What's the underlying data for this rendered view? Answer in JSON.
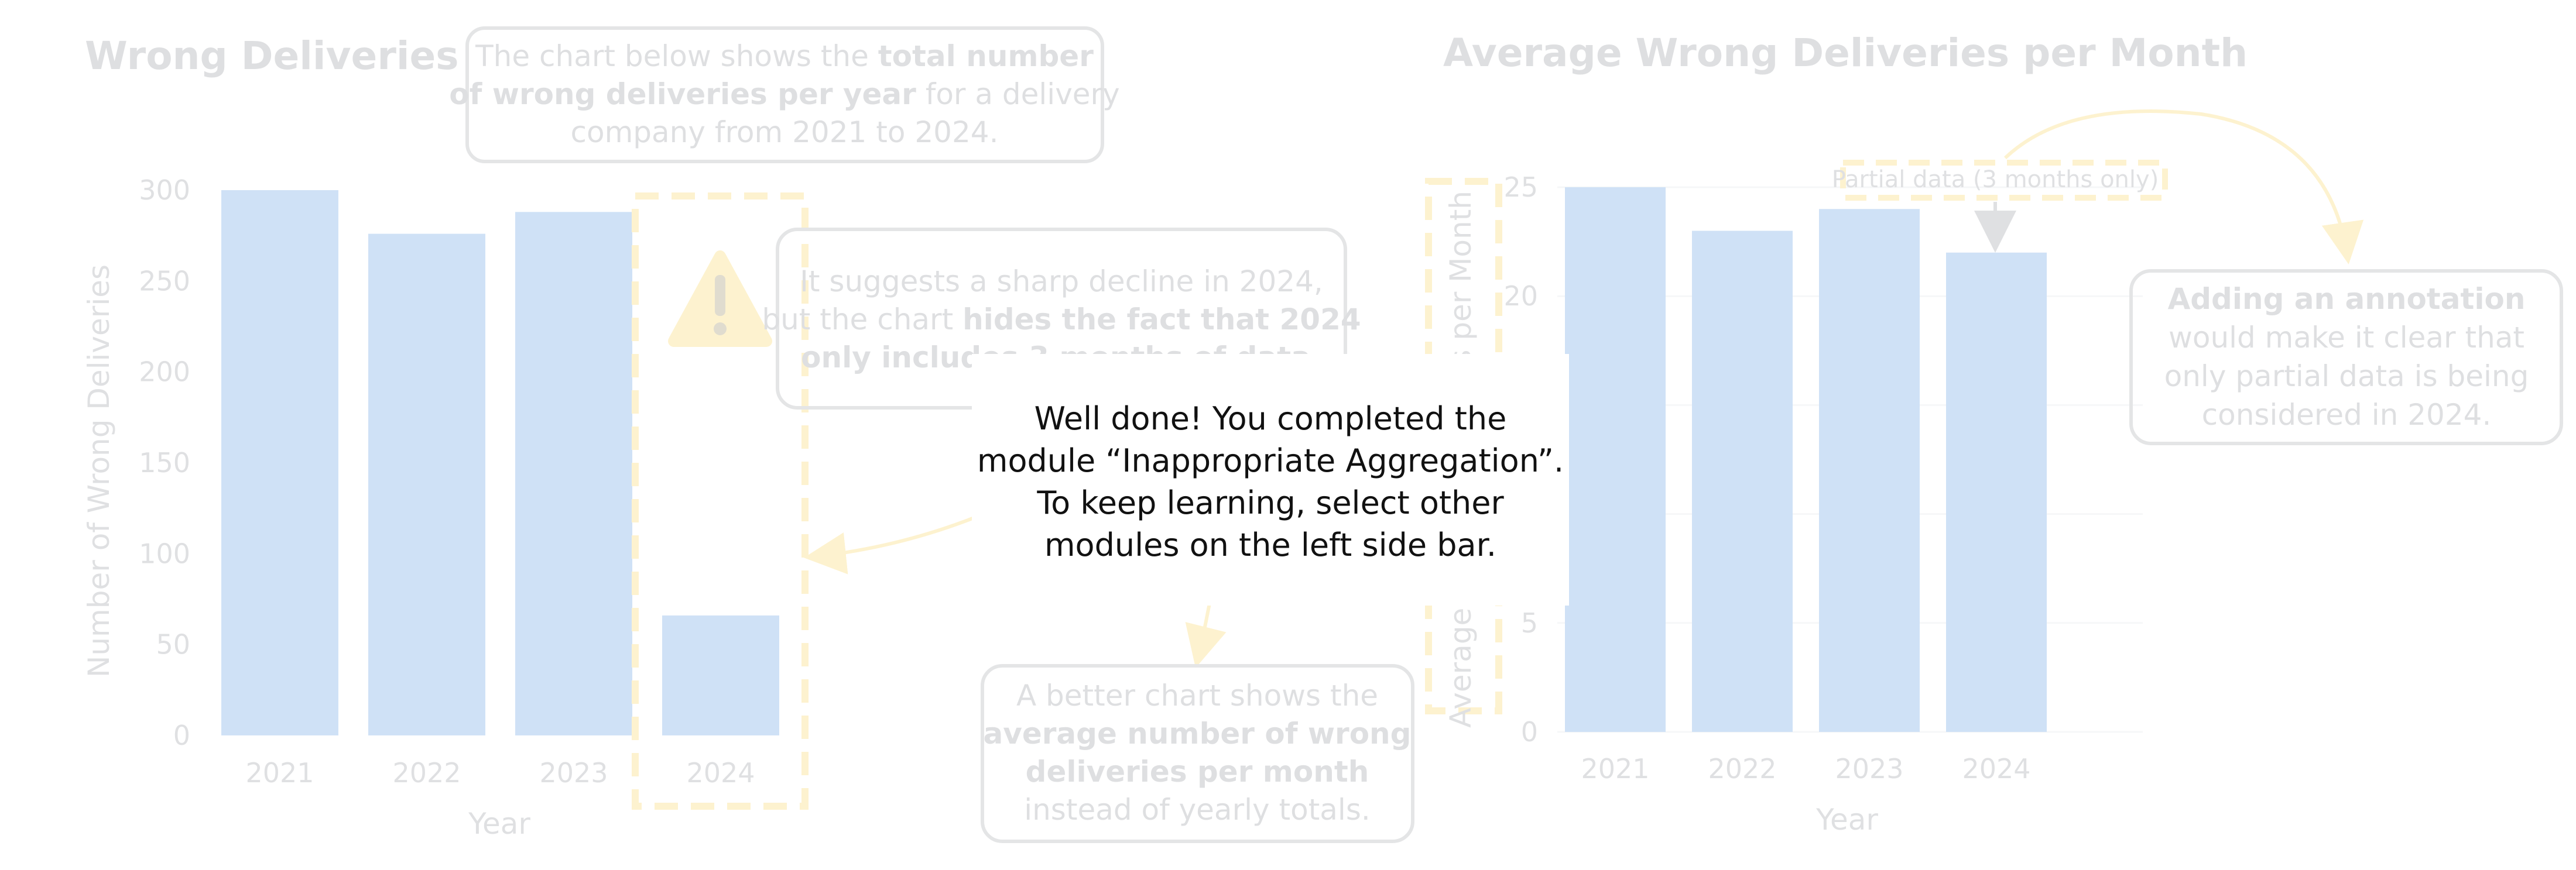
{
  "left_panel": {
    "title": "Wrong Deliveries",
    "intro": {
      "lines": [
        [
          {
            "t": "The chart below shows the ",
            "b": false
          },
          {
            "t": "total number",
            "b": true
          }
        ],
        [
          {
            "t": "of wrong deliveries per year",
            "b": true
          },
          {
            "t": " for a delivery",
            "b": false
          }
        ],
        [
          {
            "t": "company from 2021 to 2024.",
            "b": false
          }
        ]
      ]
    },
    "warning": {
      "lines": [
        [
          {
            "t": "It suggests a sharp decline in 2024,",
            "b": false
          }
        ],
        [
          {
            "t": "but the chart ",
            "b": false
          },
          {
            "t": "hides the fact that 2024",
            "b": true
          }
        ],
        [
          {
            "t": "only includes 3 months of data.",
            "b": true
          }
        ]
      ]
    },
    "better": {
      "lines": [
        [
          {
            "t": "A better chart shows the",
            "b": false
          }
        ],
        [
          {
            "t": "average number of wrong",
            "b": true
          }
        ],
        [
          {
            "t": "deliveries per month",
            "b": true
          }
        ],
        [
          {
            "t": "instead of yearly totals.",
            "b": false
          }
        ]
      ]
    },
    "warning_icon": "exclamation-triangle-icon"
  },
  "right_panel": {
    "title": "Average Wrong Deliveries per Month",
    "partial_label": "Partial data (3 months only)",
    "annotation_note": {
      "lines": [
        [
          {
            "t": "Adding an annotation",
            "b": true
          }
        ],
        [
          {
            "t": "would make it clear that",
            "b": false
          }
        ],
        [
          {
            "t": "only partial data is being",
            "b": false
          }
        ],
        [
          {
            "t": "considered in 2024.",
            "b": false
          }
        ]
      ]
    }
  },
  "colors": {
    "bar": "#a9caf0",
    "highlight": "#fde9a8",
    "box_border": "#cfd0d3",
    "text": "#c4c6c9"
  },
  "chart_data": [
    {
      "type": "bar",
      "title": "Wrong Deliveries",
      "categories": [
        "2021",
        "2022",
        "2023",
        "2024"
      ],
      "values": [
        300,
        276,
        288,
        66
      ],
      "xlabel": "Year",
      "ylabel": "Number of Wrong Deliveries",
      "yticks": [
        0,
        50,
        100,
        150,
        200,
        250,
        300
      ],
      "ylim": [
        0,
        300
      ],
      "highlight_category": "2024"
    },
    {
      "type": "bar",
      "title": "Average Wrong Deliveries per Month",
      "categories": [
        "2021",
        "2022",
        "2023",
        "2024"
      ],
      "values": [
        25,
        23,
        24,
        22
      ],
      "xlabel": "Year",
      "ylabel": "Average Wrong Deliveries per Month",
      "yticks": [
        0,
        5,
        10,
        15,
        20,
        25
      ],
      "ylim": [
        0,
        25
      ],
      "grid": true
    }
  ],
  "modal": {
    "message": "Well done! You completed the module “Inappropriate Aggregation”. To keep learning, select other modules on the left side bar."
  }
}
